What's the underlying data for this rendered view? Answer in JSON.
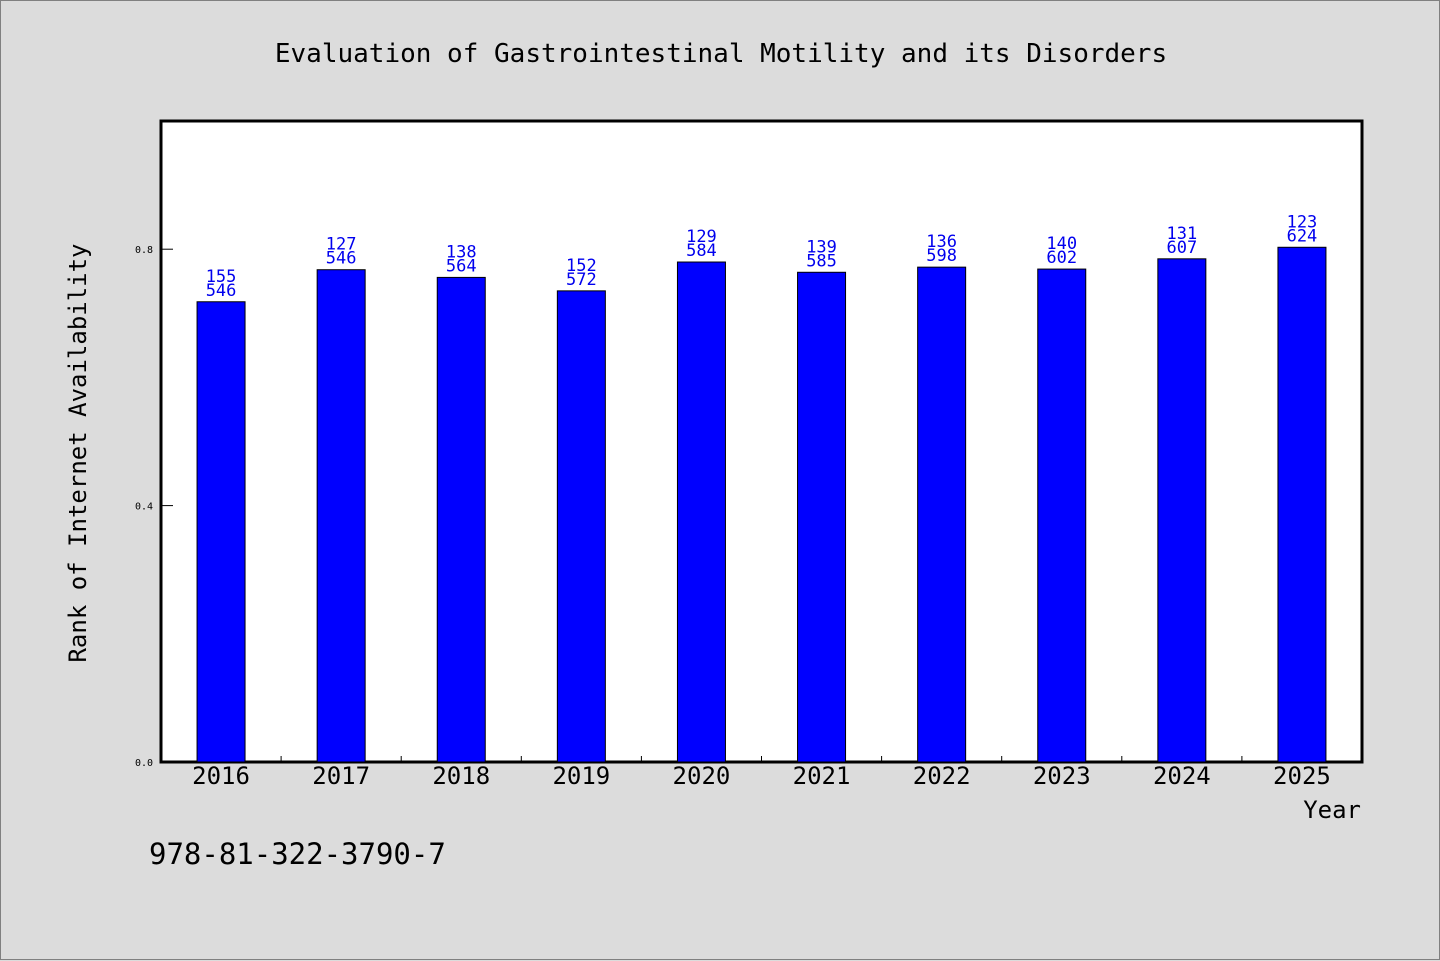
{
  "chart_data": {
    "type": "bar",
    "title": "Evaluation of Gastrointestinal Motility and its Disorders",
    "xlabel": "Year",
    "ylabel": "Rank of Internet Availability",
    "categories": [
      "2016",
      "2017",
      "2018",
      "2019",
      "2020",
      "2021",
      "2022",
      "2023",
      "2024",
      "2025"
    ],
    "series": [
      {
        "values": [
          0.718,
          0.768,
          0.756,
          0.735,
          0.78,
          0.764,
          0.772,
          0.769,
          0.785,
          0.803
        ],
        "label_top": [
          "155",
          "127",
          "138",
          "152",
          "129",
          "139",
          "136",
          "140",
          "131",
          "123"
        ],
        "label_bottom": [
          "546",
          "546",
          "564",
          "572",
          "584",
          "585",
          "598",
          "602",
          "607",
          "624"
        ]
      }
    ],
    "ylim": [
      0,
      1.0
    ],
    "yticks": [
      0.0,
      0.4,
      0.8
    ],
    "ytick_labels": [
      "0.0",
      "0.4",
      "0.8"
    ],
    "grid": false,
    "legend": "none",
    "colors": {
      "bar": "#0000ff",
      "bar_edge": "#000000",
      "data_label": "#0000ee",
      "background": "#dcdcdc",
      "plot_background": "#ffffff"
    }
  },
  "footer": {
    "code": "978-81-322-3790-7"
  }
}
